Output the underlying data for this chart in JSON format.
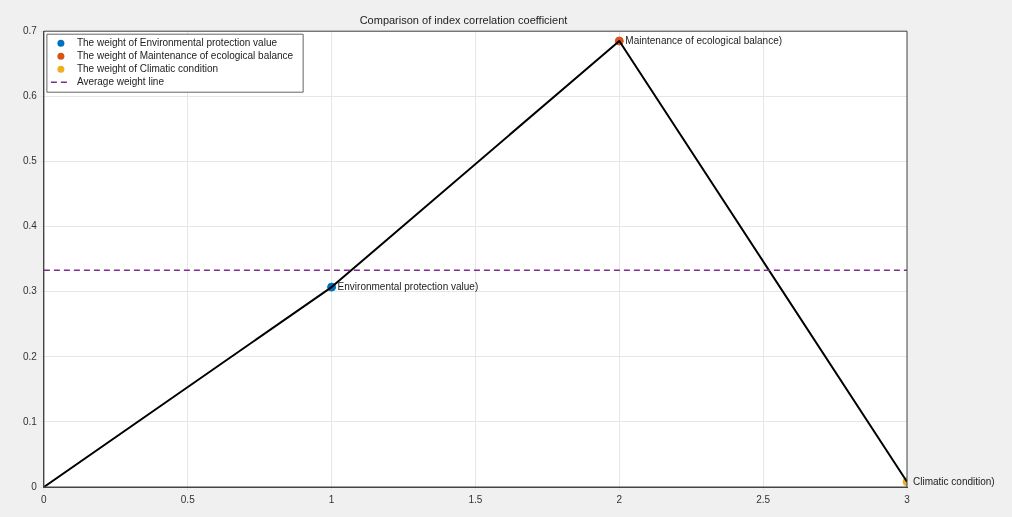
{
  "chart_data": {
    "type": "scatter",
    "title": "Comparison of index correlation coefficient",
    "series": [
      {
        "type": "line",
        "marker": "none",
        "color": "#000000",
        "x": [
          0,
          1,
          2,
          3
        ],
        "values": [
          0,
          0.307,
          0.685,
          0.008
        ]
      },
      {
        "name": "The weight of Environmental protection value",
        "color": "#0072bd",
        "x": [
          1
        ],
        "values": [
          0.307
        ]
      },
      {
        "name": "The weight of Maintenance of ecological balance",
        "color": "#d95319",
        "x": [
          2
        ],
        "values": [
          0.685
        ]
      },
      {
        "name": "The weight of Climatic condition",
        "color": "#edb120",
        "x": [
          3
        ],
        "values": [
          0.008
        ]
      }
    ],
    "ref_lines": [
      {
        "axis": "y",
        "value": 0.333,
        "label": "Average weight line",
        "color": "#7e2f8e",
        "line_style": "dashed"
      }
    ],
    "annotations": [
      {
        "text": "Environmental protection value)",
        "x": 1,
        "y": 0.307
      },
      {
        "text": "Maintenance of ecological balance)",
        "x": 2,
        "y": 0.685
      },
      {
        "text": "Climatic condition)",
        "x": 3,
        "y": 0.008
      }
    ],
    "xlim": [
      0,
      3
    ],
    "xticks": [
      0,
      0.5,
      1,
      1.5,
      2,
      2.5,
      3
    ],
    "ylim": [
      0,
      0.7
    ],
    "yticks": [
      0,
      0.1,
      0.2,
      0.3,
      0.4,
      0.5,
      0.6,
      0.7
    ],
    "grid": true,
    "legend": "top left",
    "marker": "circle"
  }
}
